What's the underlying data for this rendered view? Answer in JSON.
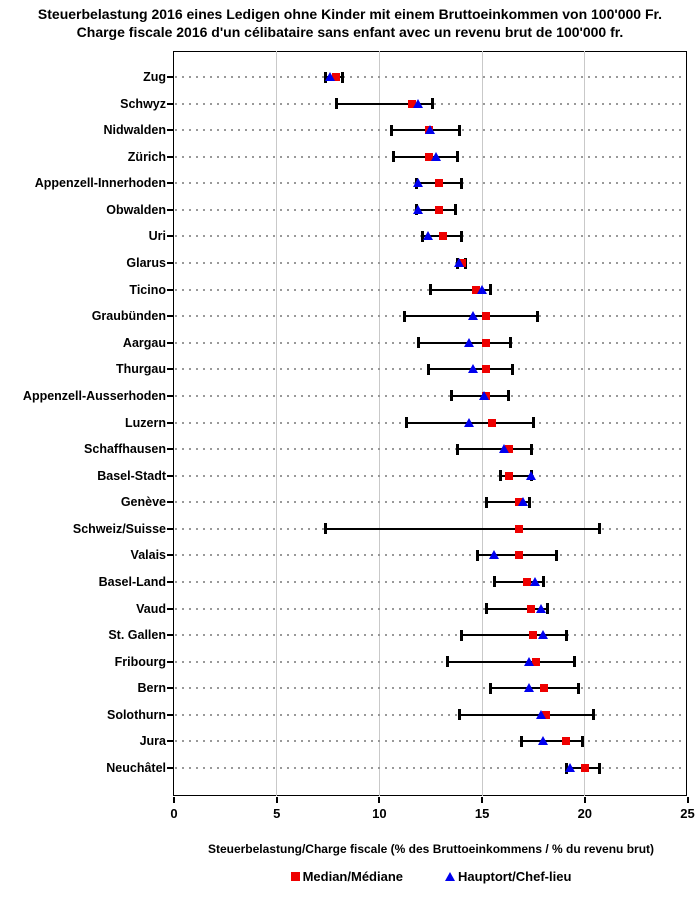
{
  "title": {
    "line1": "Steuerbelastung 2016 eines Ledigen ohne Kinder mit einem Bruttoeinkommen von 100'000 Fr.",
    "line2": "Charge fiscale 2016 d'un célibataire sans enfant avec un revenu brut de 100'000 fr."
  },
  "colors": {
    "median": "#ee0000",
    "capital": "#0000ee",
    "grid": "#c9c9c9",
    "leader": "#999999",
    "frame": "#000000"
  },
  "chart_data": {
    "type": "scatter",
    "subtype": "horizontal-range-dot-plot",
    "xlabel": "Steuerbelastung/Charge fiscale (% des Bruttoeinkommens / % du revenu brut)",
    "xlim": [
      0,
      25
    ],
    "x_ticks": [
      0,
      5,
      10,
      15,
      20,
      25
    ],
    "grid_ticks": [
      5,
      10,
      15,
      20
    ],
    "legend": [
      {
        "label": "Median/Médiane",
        "marker": "square"
      },
      {
        "label": "Hauptort/Chef-lieu",
        "marker": "triangle"
      }
    ],
    "rows": [
      {
        "canton": "Zug",
        "min": 7.4,
        "max": 8.2,
        "median": 7.9,
        "capital": 7.6
      },
      {
        "canton": "Schwyz",
        "min": 7.9,
        "max": 12.6,
        "median": 11.6,
        "capital": 11.9
      },
      {
        "canton": "Nidwalden",
        "min": 10.6,
        "max": 13.9,
        "median": 12.4,
        "capital": 12.5
      },
      {
        "canton": "Zürich",
        "min": 10.7,
        "max": 13.8,
        "median": 12.4,
        "capital": 12.8
      },
      {
        "canton": "Appenzell-Innerhoden",
        "min": 11.8,
        "max": 14.0,
        "median": 12.9,
        "capital": 11.9
      },
      {
        "canton": "Obwalden",
        "min": 11.8,
        "max": 13.7,
        "median": 12.9,
        "capital": 11.9
      },
      {
        "canton": "Uri",
        "min": 12.1,
        "max": 14.0,
        "median": 13.1,
        "capital": 12.4
      },
      {
        "canton": "Glarus",
        "min": 13.8,
        "max": 14.2,
        "median": 14.0,
        "capital": 13.9
      },
      {
        "canton": "Ticino",
        "min": 12.5,
        "max": 15.4,
        "median": 14.7,
        "capital": 15.0
      },
      {
        "canton": "Graubünden",
        "min": 11.2,
        "max": 17.7,
        "median": 15.2,
        "capital": 14.6
      },
      {
        "canton": "Aargau",
        "min": 11.9,
        "max": 16.4,
        "median": 15.2,
        "capital": 14.4
      },
      {
        "canton": "Thurgau",
        "min": 12.4,
        "max": 16.5,
        "median": 15.2,
        "capital": 14.6
      },
      {
        "canton": "Appenzell-Ausserhoden",
        "min": 13.5,
        "max": 16.3,
        "median": 15.2,
        "capital": 15.1
      },
      {
        "canton": "Luzern",
        "min": 11.3,
        "max": 17.5,
        "median": 15.5,
        "capital": 14.4
      },
      {
        "canton": "Schaffhausen",
        "min": 13.8,
        "max": 17.4,
        "median": 16.3,
        "capital": 16.1
      },
      {
        "canton": "Basel-Stadt",
        "min": 15.9,
        "max": 17.4,
        "median": 16.3,
        "capital": 17.4
      },
      {
        "canton": "Genève",
        "min": 15.2,
        "max": 17.3,
        "median": 16.8,
        "capital": 17.0
      },
      {
        "canton": "Schweiz/Suisse",
        "min": 7.4,
        "max": 20.7,
        "median": 16.8,
        "capital": null
      },
      {
        "canton": "Valais",
        "min": 14.8,
        "max": 18.6,
        "median": 16.8,
        "capital": 15.6
      },
      {
        "canton": "Basel-Land",
        "min": 15.6,
        "max": 18.0,
        "median": 17.2,
        "capital": 17.6
      },
      {
        "canton": "Vaud",
        "min": 15.2,
        "max": 18.2,
        "median": 17.4,
        "capital": 17.9
      },
      {
        "canton": "St. Gallen",
        "min": 14.0,
        "max": 19.1,
        "median": 17.5,
        "capital": 18.0
      },
      {
        "canton": "Fribourg",
        "min": 13.3,
        "max": 19.5,
        "median": 17.6,
        "capital": 17.3
      },
      {
        "canton": "Bern",
        "min": 15.4,
        "max": 19.7,
        "median": 18.0,
        "capital": 17.3
      },
      {
        "canton": "Solothurn",
        "min": 13.9,
        "max": 20.4,
        "median": 18.1,
        "capital": 17.9
      },
      {
        "canton": "Jura",
        "min": 16.9,
        "max": 19.9,
        "median": 19.1,
        "capital": 18.0
      },
      {
        "canton": "Neuchâtel",
        "min": 19.1,
        "max": 20.7,
        "median": 20.0,
        "capital": 19.3
      }
    ]
  }
}
